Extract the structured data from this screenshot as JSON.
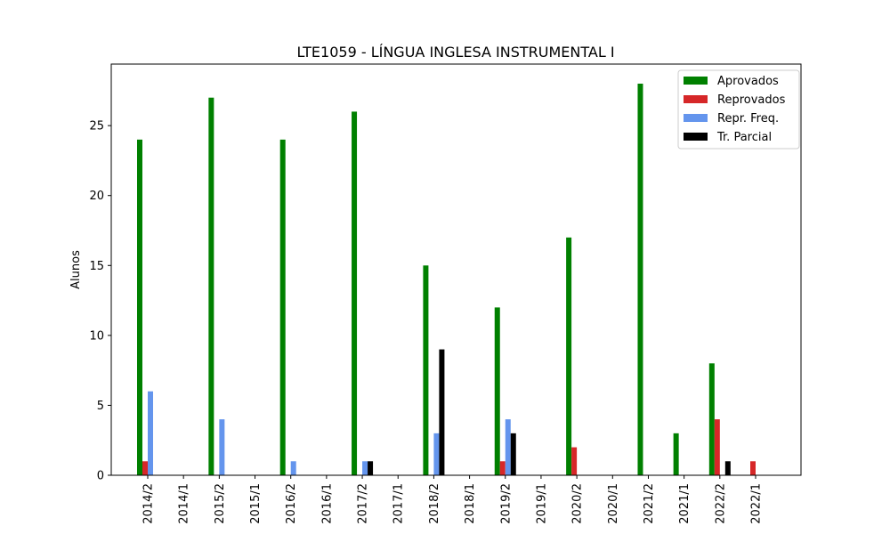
{
  "chart_data": {
    "type": "bar",
    "title": "LTE1059 - LÍNGUA INGLESA INSTRUMENTAL I",
    "xlabel": "",
    "ylabel": "Alunos",
    "ylim": [
      0,
      29.4
    ],
    "yticks": [
      0,
      5,
      10,
      15,
      20,
      25
    ],
    "categories": [
      "2014/2",
      "2014/1",
      "2015/2",
      "2015/1",
      "2016/2",
      "2016/1",
      "2017/2",
      "2017/1",
      "2018/2",
      "2018/1",
      "2019/2",
      "2019/1",
      "2020/2",
      "2020/1",
      "2021/2",
      "2021/1",
      "2022/2",
      "2022/1"
    ],
    "series": [
      {
        "name": "Aprovados",
        "color": "#008000",
        "values": [
          24,
          0,
          27,
          0,
          24,
          0,
          26,
          0,
          15,
          0,
          12,
          0,
          17,
          0,
          28,
          3,
          8,
          0
        ]
      },
      {
        "name": "Reprovados",
        "color": "#d62728",
        "values": [
          1,
          0,
          0,
          0,
          0,
          0,
          0,
          0,
          0,
          0,
          1,
          0,
          2,
          0,
          0,
          0,
          4,
          1
        ]
      },
      {
        "name": "Repr. Freq.",
        "color": "#6495ed",
        "values": [
          6,
          0,
          4,
          0,
          1,
          0,
          1,
          0,
          3,
          0,
          4,
          0,
          0,
          0,
          0,
          0,
          0,
          0
        ]
      },
      {
        "name": "Tr. Parcial",
        "color": "#000000",
        "values": [
          0,
          0,
          0,
          0,
          0,
          0,
          1,
          0,
          9,
          0,
          3,
          0,
          0,
          0,
          0,
          0,
          1,
          0
        ]
      }
    ],
    "legend_position": "top-right",
    "grid": false
  }
}
